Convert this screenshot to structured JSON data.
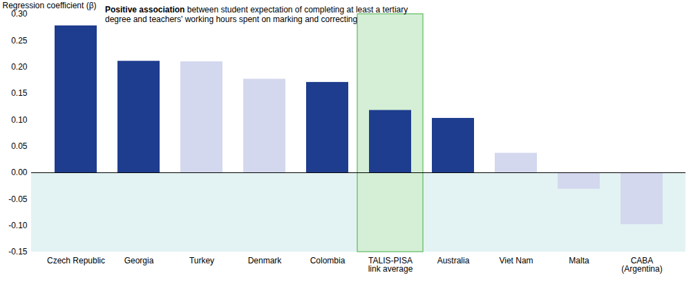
{
  "chart_data": {
    "type": "bar",
    "y_label": "Regression coefficient (β)",
    "annotation": [
      "Positive association",
      "between student expectation of completing at least a tertiary degree and teachers' working hours spent on marking and correcting"
    ],
    "categories": [
      "Czech Republic",
      "Georgia",
      "Turkey",
      "Denmark",
      "Colombia",
      "TALIS-PISA\nlink average",
      "Australia",
      "Viet Nam",
      "Malta",
      "CABA\n(Argentina)"
    ],
    "values": [
      0.278,
      0.211,
      0.21,
      0.177,
      0.171,
      0.118,
      0.103,
      0.037,
      -0.031,
      -0.098
    ],
    "colors": [
      "#1f3d8e",
      "#1f3d8e",
      "#d3d8ee",
      "#d3d8ee",
      "#1f3d8e",
      "#1f3d8e",
      "#1f3d8e",
      "#d3d8ee",
      "#d3d8ee",
      "#d3d8ee"
    ],
    "ylim": [
      -0.15,
      0.3
    ],
    "yticks": [
      {
        "value": -0.15,
        "label": "-0.15"
      },
      {
        "value": -0.1,
        "label": "-0.10"
      },
      {
        "value": -0.05,
        "label": "-0.05"
      },
      {
        "value": 0,
        "label": "0.00"
      },
      0.05,
      {
        "value": 0.1,
        "label": "0.10"
      },
      0.15,
      {
        "value": 0.2,
        "label": "0.20"
      },
      0.25,
      {
        "value": 0.3,
        "label": "0.30"
      }
    ],
    "grid": false,
    "data_labels": false
  }
}
